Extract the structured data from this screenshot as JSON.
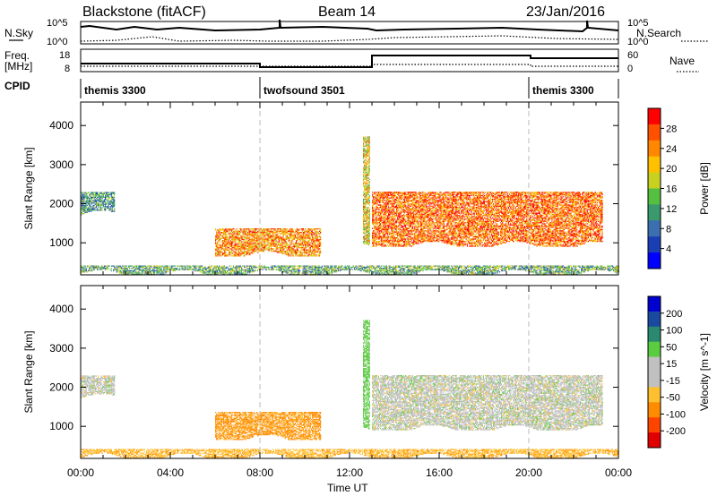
{
  "header": {
    "site": "Blackstone (fitACF)",
    "beam": "Beam 14",
    "date": "23/Jan/2016"
  },
  "top_panels": {
    "nsky_label": "N.Sky",
    "nsearch_label": "N.Search",
    "nsky_ticks": [
      "10^5",
      "10^0"
    ],
    "nsearch_ticks": [
      "10^5",
      "10^0"
    ],
    "freq_label": "Freq.",
    "freq_unit": "[MHz]",
    "freq_ticks": [
      "18",
      "8"
    ],
    "nave_label": "Nave",
    "nave_ticks": [
      "60",
      "0"
    ],
    "cpid_label": "CPID",
    "cpid_segments": [
      {
        "start_h": 0,
        "label": "themis 3300"
      },
      {
        "start_h": 8,
        "label": "twofsound 3501"
      },
      {
        "start_h": 20,
        "label": "themis 3300"
      }
    ]
  },
  "colors": {
    "power": [
      "#0000ff",
      "#1a3fb4",
      "#3b6fb0",
      "#3a9a6e",
      "#55c040",
      "#c8d020",
      "#ffc000",
      "#ff8800",
      "#ff5000",
      "#ff0000"
    ],
    "velocity": [
      "#e00000",
      "#ff4400",
      "#ff8c00",
      "#ffc030",
      "#c0c0c0",
      "#c0c0c0",
      "#5acc40",
      "#2a8a70",
      "#1a4aa0",
      "#0000d0"
    ]
  },
  "chart_data": [
    {
      "type": "heatmap",
      "title": "Power",
      "xlabel": "Time UT",
      "ylabel": "Slant Range [km]",
      "xlim_hours": [
        0,
        24
      ],
      "ylim_km": [
        180,
        4600
      ],
      "x_tick_labels": [
        "00:00",
        "04:00",
        "08:00",
        "12:00",
        "16:00",
        "20:00",
        "00:00"
      ],
      "y_tick_labels": [
        "1000",
        "2000",
        "3000",
        "4000"
      ],
      "colorbar": {
        "label": "Power [dB]",
        "ticks": [
          "4",
          "8",
          "12",
          "16",
          "20",
          "24",
          "28"
        ],
        "range": [
          0,
          30
        ]
      },
      "echo_regions": [
        {
          "start_h": 0.0,
          "end_h": 1.5,
          "range_km": [
            1700,
            2300
          ],
          "power_db": 10
        },
        {
          "start_h": 6.0,
          "end_h": 10.7,
          "range_km": [
            650,
            1350
          ],
          "power_db": 22
        },
        {
          "start_h": 12.6,
          "end_h": 12.9,
          "range_km": [
            900,
            3700
          ],
          "power_db": 18
        },
        {
          "start_h": 13.0,
          "end_h": 23.3,
          "range_km": [
            900,
            2300
          ],
          "power_db": 24
        },
        {
          "start_h": 0.0,
          "end_h": 24.0,
          "range_km": [
            180,
            400
          ],
          "power_db": 12
        }
      ]
    },
    {
      "type": "heatmap",
      "title": "Velocity",
      "xlabel": "Time UT",
      "ylabel": "Slant Range [km]",
      "xlim_hours": [
        0,
        24
      ],
      "ylim_km": [
        180,
        4600
      ],
      "x_tick_labels": [
        "00:00",
        "04:00",
        "08:00",
        "12:00",
        "16:00",
        "20:00",
        "00:00"
      ],
      "y_tick_labels": [
        "1000",
        "2000",
        "3000",
        "4000"
      ],
      "colorbar": {
        "label": "Velocity [m s^-1]",
        "ticks": [
          "200",
          "100",
          "50",
          "15",
          "-15",
          "-50",
          "-100",
          "-200"
        ],
        "range": [
          -250,
          250
        ]
      },
      "echo_regions": [
        {
          "start_h": 0.0,
          "end_h": 1.5,
          "range_km": [
            1700,
            2300
          ],
          "velocity_ms": 0
        },
        {
          "start_h": 6.0,
          "end_h": 10.7,
          "range_km": [
            650,
            1350
          ],
          "velocity_ms": -60
        },
        {
          "start_h": 12.6,
          "end_h": 12.9,
          "range_km": [
            900,
            3700
          ],
          "velocity_ms": 30
        },
        {
          "start_h": 13.0,
          "end_h": 23.3,
          "range_km": [
            900,
            2300
          ],
          "velocity_ms": 0
        },
        {
          "start_h": 0.0,
          "end_h": 24.0,
          "range_km": [
            180,
            400
          ],
          "velocity_ms": -40
        }
      ]
    }
  ]
}
